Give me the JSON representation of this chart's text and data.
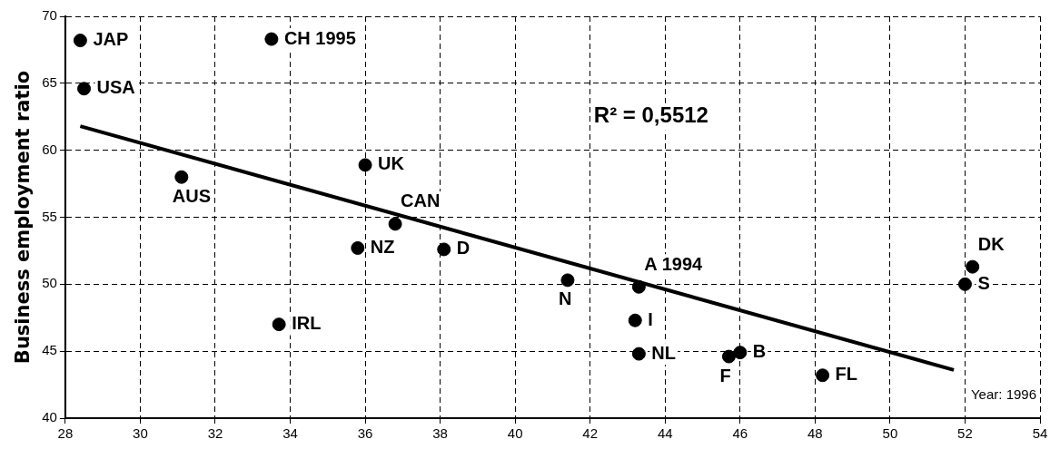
{
  "chart_data": {
    "type": "scatter",
    "ylabel": "Business employment ratio",
    "xlim": [
      28,
      54
    ],
    "xticks": [
      28,
      30,
      32,
      34,
      36,
      38,
      40,
      42,
      44,
      46,
      48,
      50,
      52,
      54
    ],
    "ylim": [
      40,
      70
    ],
    "yticks": [
      40,
      45,
      50,
      55,
      60,
      65,
      70
    ],
    "grid": true,
    "series": [
      {
        "marker": "circle",
        "color": "#000000",
        "x": [
          28.4,
          33.5,
          28.5,
          31.1,
          36.0,
          36.8,
          35.8,
          38.1,
          33.7,
          41.4,
          43.3,
          43.2,
          43.3,
          45.7,
          46.0,
          48.2,
          52.0,
          52.2
        ],
        "values": [
          68.2,
          68.3,
          64.6,
          58.0,
          58.9,
          54.5,
          52.7,
          52.6,
          47.0,
          50.3,
          49.8,
          47.3,
          44.8,
          44.6,
          44.9,
          43.2,
          50.0,
          51.3
        ]
      },
      {
        "type": "line",
        "color": "#000000",
        "x": [
          28.4,
          51.7
        ],
        "values": [
          61.8,
          43.6
        ]
      }
    ],
    "annotations": [
      {
        "text": "JAP",
        "x": 28.4,
        "y": 68.2
      },
      {
        "text": "CH 1995",
        "x": 33.5,
        "y": 68.3
      },
      {
        "text": "USA",
        "x": 28.5,
        "y": 64.6
      },
      {
        "text": "AUS",
        "x": 31.1,
        "y": 58.0
      },
      {
        "text": "UK",
        "x": 36.0,
        "y": 58.9
      },
      {
        "text": "CAN",
        "x": 36.8,
        "y": 54.5
      },
      {
        "text": "NZ",
        "x": 35.8,
        "y": 52.7
      },
      {
        "text": "D",
        "x": 38.1,
        "y": 52.6
      },
      {
        "text": "IRL",
        "x": 33.7,
        "y": 47.0
      },
      {
        "text": "N",
        "x": 41.4,
        "y": 50.3
      },
      {
        "text": "A 1994",
        "x": 43.3,
        "y": 49.8
      },
      {
        "text": "I",
        "x": 43.2,
        "y": 47.3
      },
      {
        "text": "NL",
        "x": 43.3,
        "y": 44.8
      },
      {
        "text": "F",
        "x": 45.7,
        "y": 44.6
      },
      {
        "text": "B",
        "x": 46.0,
        "y": 44.9
      },
      {
        "text": "FL",
        "x": 48.2,
        "y": 43.2
      },
      {
        "text": "S",
        "x": 52.0,
        "y": 50.0
      },
      {
        "text": "DK",
        "x": 52.2,
        "y": 51.3
      },
      "R² = 0,5512",
      "Year: 1996"
    ]
  }
}
